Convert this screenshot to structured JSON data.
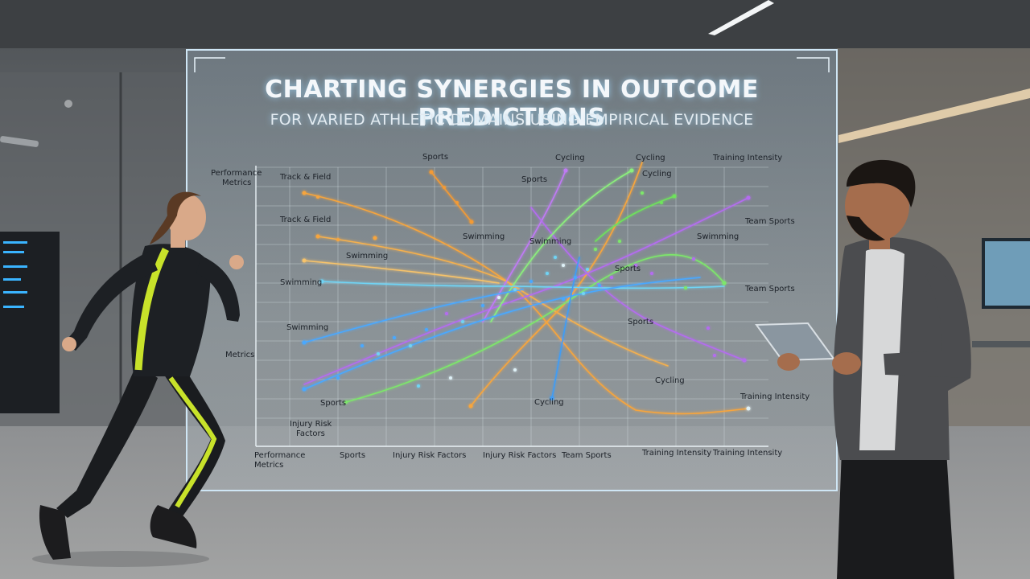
{
  "hologram": {
    "title": "CHARTING SYNERGIES IN OUTCOME PREDICTIONS",
    "subtitle": "FOR VARIED ATHLETIC DOMAINS USING EMPIRICAL EVIDENCE"
  },
  "chart_labels": {
    "y_axis": [
      "Performance",
      "Metrics",
      "Track & Field",
      "Track & Field",
      "Swimming",
      "Swimming",
      "Metrics",
      "Injury Risk",
      "Factors"
    ],
    "top": [
      "Sports",
      "Cycling",
      "Cycling",
      "Training Intensity",
      "Sports",
      "Cycling"
    ],
    "inner": [
      "Swimming",
      "Swimming",
      "Swimming",
      "Sports",
      "Cycling",
      "Cycling",
      "Team Sports",
      "Team Sports",
      "Training Intensity",
      "Sports",
      "Swimming",
      "Sports"
    ],
    "x_axis": [
      "Performance",
      "Metrics",
      "Sports",
      "Injury Risk Factors",
      "Injury Risk Factors",
      "Team Sports",
      "Training Intensity",
      "Training Intensity"
    ]
  },
  "colors": {
    "orange": "#f7a53c",
    "purple": "#b46cf0",
    "green": "#7de86a",
    "cyan": "#6fd4f5",
    "blue": "#4aa8ff",
    "athlete_accent": "#c8e22a"
  }
}
